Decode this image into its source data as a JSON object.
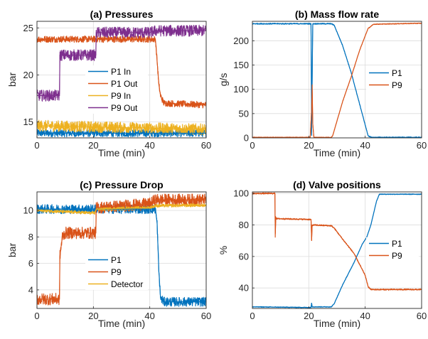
{
  "figure": {
    "panels": [
      {
        "title": "(a) Pressures",
        "xlabel": "Time (min)",
        "ylabel": "bar"
      },
      {
        "title": "(b) Mass flow rate",
        "xlabel": "Time (min)",
        "ylabel": "g/s"
      },
      {
        "title": "(c) Pressure Drop",
        "xlabel": "Time (min)",
        "ylabel": "bar"
      },
      {
        "title": "(d) Valve positions",
        "xlabel": "Time (min)",
        "ylabel": "%"
      }
    ]
  },
  "colors": {
    "blue": "#0072BD",
    "orange": "#D95319",
    "yellow": "#EDB120",
    "purple": "#7E2F8E"
  },
  "chart_data": [
    {
      "type": "line",
      "title": "(a) Pressures",
      "xlabel": "Time (min)",
      "ylabel": "bar",
      "xlim": [
        0,
        60
      ],
      "ylim": [
        13.3,
        25.7
      ],
      "xticks": [
        0,
        20,
        40,
        60
      ],
      "yticks": [
        15,
        20,
        25
      ],
      "grid": true,
      "legend_position": "center-right",
      "series": [
        {
          "name": "P1 In",
          "color": "#0072BD",
          "noise": 0.4,
          "points": [
            [
              0,
              13.8
            ],
            [
              60,
              13.8
            ]
          ]
        },
        {
          "name": "P1 Out",
          "color": "#D95319",
          "noise": 0.35,
          "points": [
            [
              0,
              23.8
            ],
            [
              42,
              23.8
            ],
            [
              42.6,
              21.5
            ],
            [
              43.2,
              19
            ],
            [
              43.8,
              17.8
            ],
            [
              45,
              17
            ],
            [
              60,
              16.8
            ]
          ]
        },
        {
          "name": "P9 In",
          "color": "#EDB120",
          "noise": 0.6,
          "points": [
            [
              0,
              14.6
            ],
            [
              60,
              14.2
            ]
          ]
        },
        {
          "name": "P9 Out",
          "color": "#7E2F8E",
          "noise": 0.6,
          "points": [
            [
              0,
              17.8
            ],
            [
              8,
              17.8
            ],
            [
              8.1,
              22.1
            ],
            [
              20.9,
              22.1
            ],
            [
              21,
              24.5
            ],
            [
              40,
              24.5
            ],
            [
              42,
              24.7
            ],
            [
              60,
              24.7
            ]
          ]
        }
      ]
    },
    {
      "type": "line",
      "title": "(b) Mass flow rate",
      "xlabel": "Time (min)",
      "ylabel": "g/s",
      "xlim": [
        0,
        60
      ],
      "ylim": [
        0,
        240
      ],
      "xticks": [
        0,
        20,
        40,
        60
      ],
      "yticks": [
        0,
        50,
        100,
        150,
        200
      ],
      "grid": true,
      "legend_position": "center-right",
      "series": [
        {
          "name": "P1",
          "color": "#0072BD",
          "noise": 1.2,
          "points": [
            [
              0,
              235
            ],
            [
              20.8,
              235
            ],
            [
              21,
              5
            ],
            [
              21.2,
              120
            ],
            [
              21.4,
              235
            ],
            [
              28,
              235
            ],
            [
              29,
              232
            ],
            [
              32,
              190
            ],
            [
              35,
              135
            ],
            [
              38,
              70
            ],
            [
              41,
              5
            ],
            [
              42,
              1
            ],
            [
              60,
              1
            ]
          ]
        },
        {
          "name": "P9",
          "color": "#D95319",
          "noise": 0.8,
          "points": [
            [
              0,
              1
            ],
            [
              20.5,
              1
            ],
            [
              21,
              60
            ],
            [
              21.2,
              110
            ],
            [
              21.4,
              30
            ],
            [
              21.8,
              1
            ],
            [
              28,
              1
            ],
            [
              28.5,
              5
            ],
            [
              32,
              75
            ],
            [
              35,
              125
            ],
            [
              38,
              180
            ],
            [
              41,
              225
            ],
            [
              43,
              234
            ],
            [
              60,
              236
            ]
          ]
        }
      ]
    },
    {
      "type": "line",
      "title": "(c) Pressure Drop",
      "xlabel": "Time (min)",
      "ylabel": "bar",
      "xlim": [
        0,
        60
      ],
      "ylim": [
        2.6,
        11.4
      ],
      "xticks": [
        0,
        20,
        40,
        60
      ],
      "yticks": [
        4,
        6,
        8,
        10
      ],
      "grid": true,
      "legend_position": "bottom-center",
      "series": [
        {
          "name": "P1",
          "color": "#0072BD",
          "noise": 0.35,
          "points": [
            [
              0,
              10.1
            ],
            [
              42,
              10.1
            ],
            [
              42.6,
              9
            ],
            [
              43.2,
              5.5
            ],
            [
              43.8,
              3.4
            ],
            [
              45,
              3.1
            ],
            [
              60,
              3.1
            ]
          ]
        },
        {
          "name": "P9",
          "color": "#D95319",
          "noise": 0.45,
          "points": [
            [
              0,
              3.3
            ],
            [
              8,
              3.3
            ],
            [
              8.1,
              6.5
            ],
            [
              9,
              8
            ],
            [
              10,
              8.3
            ],
            [
              20.9,
              8.3
            ],
            [
              21,
              10.2
            ],
            [
              40,
              10.5
            ],
            [
              42,
              10.8
            ],
            [
              60,
              10.8
            ]
          ]
        },
        {
          "name": "Detector",
          "color": "#EDB120",
          "noise": 0.12,
          "points": [
            [
              0,
              10.0
            ],
            [
              20,
              9.8
            ],
            [
              20.5,
              9.8
            ],
            [
              21,
              10.1
            ],
            [
              40,
              10.2
            ],
            [
              42,
              10.35
            ],
            [
              60,
              10.4
            ]
          ]
        }
      ]
    },
    {
      "type": "line",
      "title": "(d) Valve positions",
      "xlabel": "Time (min)",
      "ylabel": "%",
      "xlim": [
        0,
        60
      ],
      "ylim": [
        27,
        101
      ],
      "xticks": [
        0,
        20,
        40,
        60
      ],
      "yticks": [
        40,
        60,
        80,
        100
      ],
      "grid": true,
      "legend_position": "center-right",
      "series": [
        {
          "name": "P1",
          "color": "#0072BD",
          "noise": 0.25,
          "points": [
            [
              0,
              28
            ],
            [
              20.8,
              27.6
            ],
            [
              21,
              30.5
            ],
            [
              21.2,
              28
            ],
            [
              28,
              28
            ],
            [
              29,
              30
            ],
            [
              32,
              42
            ],
            [
              36,
              56
            ],
            [
              39,
              68
            ],
            [
              40.5,
              72
            ],
            [
              42,
              80
            ],
            [
              44,
              95
            ],
            [
              45,
              99.5
            ],
            [
              60,
              99.5
            ]
          ]
        },
        {
          "name": "P9",
          "color": "#D95319",
          "noise": 0.45,
          "points": [
            [
              0,
              100
            ],
            [
              8,
              100
            ],
            [
              8.1,
              72
            ],
            [
              8.3,
              85
            ],
            [
              8.6,
              84
            ],
            [
              20.8,
              83.5
            ],
            [
              21,
              70
            ],
            [
              21.2,
              80
            ],
            [
              28,
              79.5
            ],
            [
              29,
              78
            ],
            [
              32,
              71
            ],
            [
              36,
              62
            ],
            [
              40,
              48
            ],
            [
              41,
              41
            ],
            [
              42,
              39
            ],
            [
              60,
              39
            ]
          ]
        }
      ]
    }
  ]
}
